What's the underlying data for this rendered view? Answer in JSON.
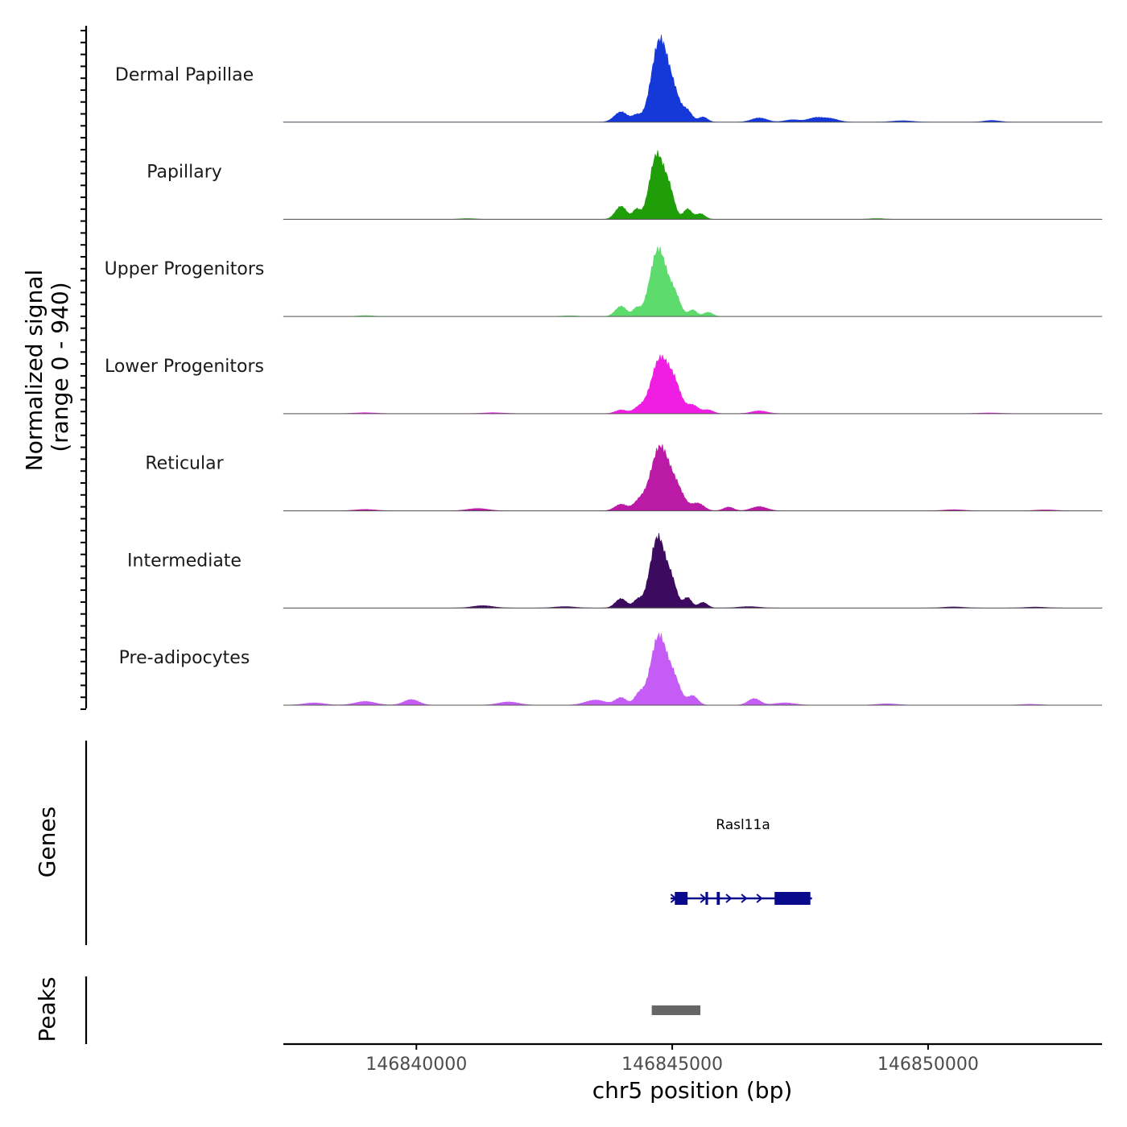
{
  "chart_data": {
    "type": "area",
    "title": "",
    "ylabel_line1": "Normalized signal",
    "ylabel_line2": "(range 0 - 940)",
    "ylim": [
      0,
      940
    ],
    "xlabel": "chr5 position (bp)",
    "xlim": [
      146837400,
      146853400
    ],
    "x_ticks": [
      {
        "value": 146840000,
        "label": "146840000"
      },
      {
        "value": 146845000,
        "label": "146845000"
      },
      {
        "value": 146850000,
        "label": "146850000"
      }
    ],
    "series": [
      {
        "name": "Dermal Papillae",
        "color": "#1538d9",
        "peaks": [
          [
            146844000,
            110,
            130
          ],
          [
            146844300,
            65,
            80
          ],
          [
            146844760,
            880,
            160
          ],
          [
            146845050,
            230,
            120
          ],
          [
            146845300,
            110,
            90
          ],
          [
            146845600,
            55,
            90
          ],
          [
            146846700,
            45,
            150
          ],
          [
            146847350,
            25,
            150
          ],
          [
            146847800,
            45,
            150
          ],
          [
            146848100,
            35,
            150
          ],
          [
            146849500,
            15,
            200
          ],
          [
            146851250,
            18,
            150
          ]
        ]
      },
      {
        "name": "Papillary",
        "color": "#1f9e0a",
        "peaks": [
          [
            146844000,
            140,
            110
          ],
          [
            146844300,
            100,
            70
          ],
          [
            146844700,
            690,
            140
          ],
          [
            146844950,
            250,
            100
          ],
          [
            146845300,
            110,
            80
          ],
          [
            146845550,
            60,
            90
          ],
          [
            146841000,
            8,
            150
          ],
          [
            146849000,
            8,
            150
          ]
        ]
      },
      {
        "name": "Upper Progenitors",
        "color": "#5ddb6c",
        "peaks": [
          [
            146844000,
            110,
            110
          ],
          [
            146844300,
            80,
            70
          ],
          [
            146844730,
            720,
            160
          ],
          [
            146845050,
            200,
            110
          ],
          [
            146845400,
            70,
            80
          ],
          [
            146845700,
            45,
            90
          ],
          [
            146839000,
            10,
            150
          ],
          [
            146843000,
            8,
            150
          ]
        ]
      },
      {
        "name": "Lower Progenitors",
        "color": "#f01ee3",
        "peaks": [
          [
            146844000,
            40,
            110
          ],
          [
            146844350,
            60,
            110
          ],
          [
            146844760,
            580,
            170
          ],
          [
            146845050,
            260,
            130
          ],
          [
            146845400,
            90,
            110
          ],
          [
            146845700,
            40,
            100
          ],
          [
            146846700,
            30,
            150
          ],
          [
            146839000,
            10,
            200
          ],
          [
            146841500,
            10,
            200
          ],
          [
            146851200,
            8,
            200
          ]
        ]
      },
      {
        "name": "Reticular",
        "color": "#bb1aa6",
        "peaks": [
          [
            146844000,
            70,
            120
          ],
          [
            146844350,
            90,
            110
          ],
          [
            146844760,
            680,
            180
          ],
          [
            146845100,
            200,
            140
          ],
          [
            146845500,
            80,
            120
          ],
          [
            146846100,
            40,
            100
          ],
          [
            146846700,
            45,
            150
          ],
          [
            146841200,
            25,
            200
          ],
          [
            146839000,
            15,
            200
          ],
          [
            146850500,
            12,
            200
          ],
          [
            146852300,
            10,
            200
          ]
        ]
      },
      {
        "name": "Intermediate",
        "color": "#3c0a5e",
        "peaks": [
          [
            146844000,
            100,
            110
          ],
          [
            146844320,
            80,
            80
          ],
          [
            146844720,
            760,
            150
          ],
          [
            146845000,
            220,
            100
          ],
          [
            146845300,
            110,
            80
          ],
          [
            146845600,
            60,
            90
          ],
          [
            146841300,
            25,
            200
          ],
          [
            146842900,
            15,
            200
          ],
          [
            146846500,
            15,
            200
          ],
          [
            146850500,
            12,
            200
          ],
          [
            146852100,
            10,
            200
          ]
        ]
      },
      {
        "name": "Pre-adipocytes",
        "color": "#c55cf5",
        "peaks": [
          [
            146844000,
            80,
            110
          ],
          [
            146844350,
            110,
            90
          ],
          [
            146844740,
            740,
            160
          ],
          [
            146845050,
            230,
            120
          ],
          [
            146845400,
            100,
            100
          ],
          [
            146846600,
            70,
            120
          ],
          [
            146843500,
            55,
            200
          ],
          [
            146841800,
            35,
            200
          ],
          [
            146839000,
            40,
            200
          ],
          [
            146839900,
            60,
            150
          ],
          [
            146838000,
            25,
            200
          ],
          [
            146847200,
            25,
            200
          ],
          [
            146849200,
            15,
            200
          ],
          [
            146852000,
            10,
            200
          ]
        ]
      }
    ],
    "genes_track": {
      "label": "Genes",
      "gene": {
        "name": "Rasl11a",
        "start": 146845000,
        "end": 146847700,
        "strand": "+",
        "color": "#0a0a8c",
        "exons": [
          [
            146845050,
            146845300
          ],
          [
            146845650,
            146845700
          ],
          [
            146845870,
            146845930
          ],
          [
            146847000,
            146847700
          ]
        ],
        "arrows": [
          146845020,
          146845600,
          146846100,
          146846400,
          146846700
        ]
      }
    },
    "peaks_track": {
      "label": "Peaks",
      "color": "#666666",
      "peaks": [
        [
          146844600,
          146845550
        ]
      ]
    }
  }
}
